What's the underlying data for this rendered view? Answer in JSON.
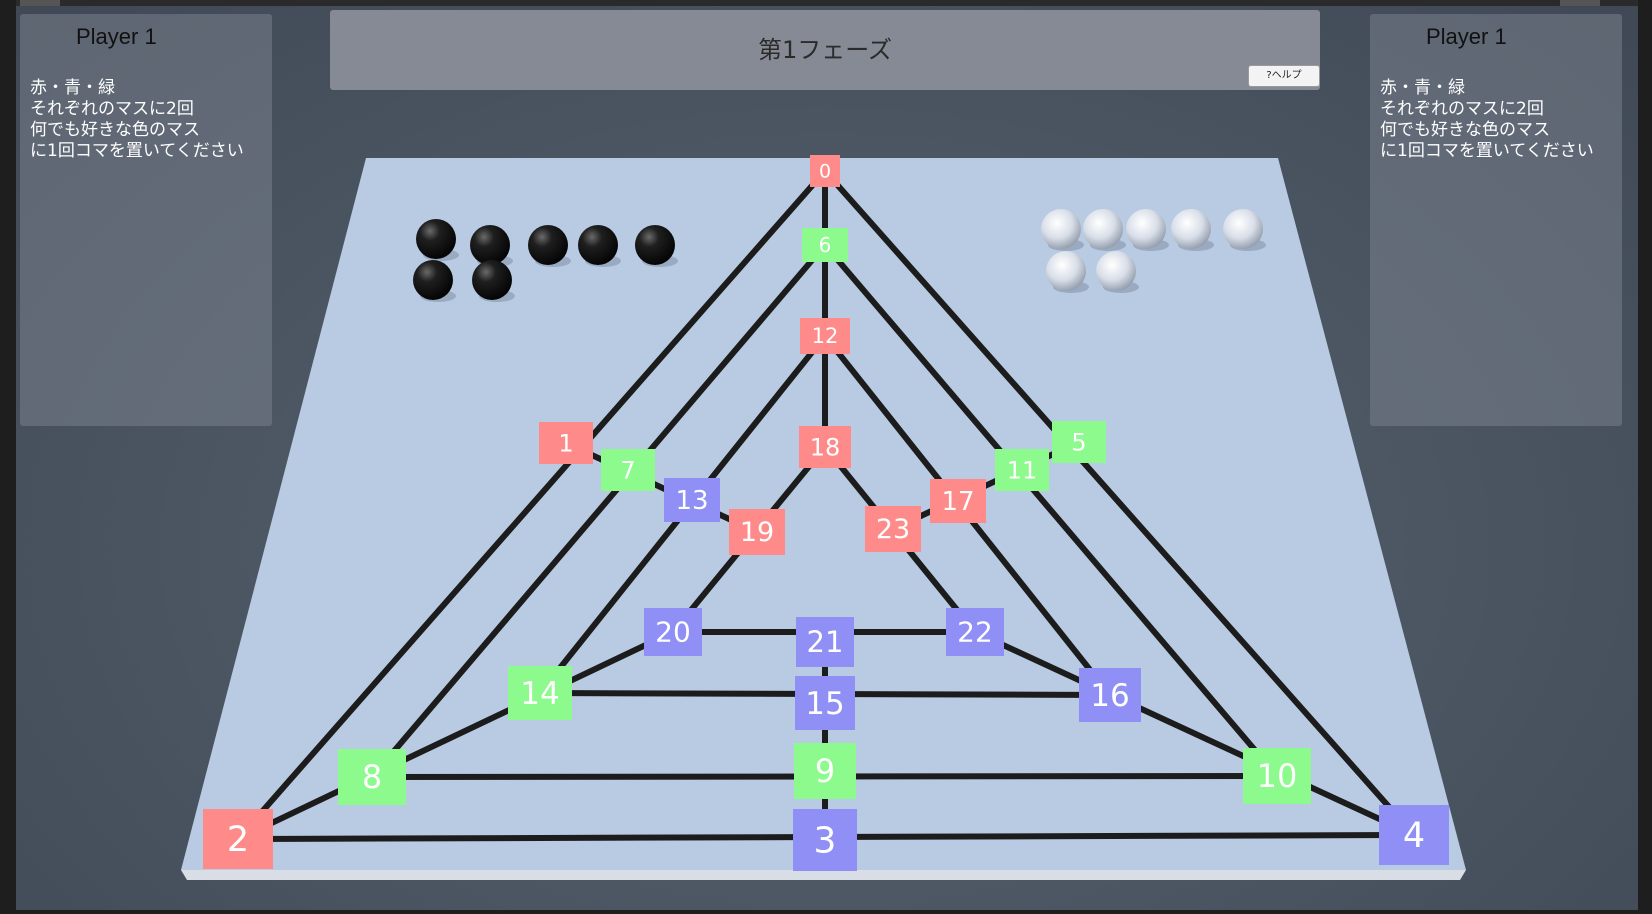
{
  "phase": {
    "title": "第1フェーズ",
    "help_label": "?ヘルプ"
  },
  "players": [
    {
      "name": "Player 1",
      "instructions": [
        "赤・青・緑",
        "それぞれのマスに2回",
        "何でも好きな色のマス",
        "に1回コマを置いてください"
      ]
    },
    {
      "name": "Player 1",
      "instructions": [
        "赤・青・緑",
        "それぞれのマスに2回",
        "何でも好きな色のマス",
        "に1回コマを置いてください"
      ]
    }
  ],
  "colors": {
    "red": "#ff8a8a",
    "green": "#8cfa8c",
    "blue": "#8f8ff5",
    "board": "#b8cbe3",
    "line": "#1c1c1c"
  },
  "board": {
    "tiles": [
      {
        "label": "0",
        "color": "red"
      },
      {
        "label": "6",
        "color": "green"
      },
      {
        "label": "12",
        "color": "red"
      },
      {
        "label": "18",
        "color": "red"
      },
      {
        "label": "1",
        "color": "red"
      },
      {
        "label": "7",
        "color": "green"
      },
      {
        "label": "13",
        "color": "blue"
      },
      {
        "label": "19",
        "color": "red"
      },
      {
        "label": "23",
        "color": "red"
      },
      {
        "label": "17",
        "color": "red"
      },
      {
        "label": "11",
        "color": "green"
      },
      {
        "label": "5",
        "color": "green"
      },
      {
        "label": "20",
        "color": "blue"
      },
      {
        "label": "21",
        "color": "blue"
      },
      {
        "label": "22",
        "color": "blue"
      },
      {
        "label": "14",
        "color": "green"
      },
      {
        "label": "15",
        "color": "blue"
      },
      {
        "label": "16",
        "color": "blue"
      },
      {
        "label": "8",
        "color": "green"
      },
      {
        "label": "9",
        "color": "green"
      },
      {
        "label": "10",
        "color": "green"
      },
      {
        "label": "2",
        "color": "red"
      },
      {
        "label": "3",
        "color": "blue"
      },
      {
        "label": "4",
        "color": "blue"
      }
    ],
    "black_pieces": 7,
    "white_pieces": 7
  }
}
